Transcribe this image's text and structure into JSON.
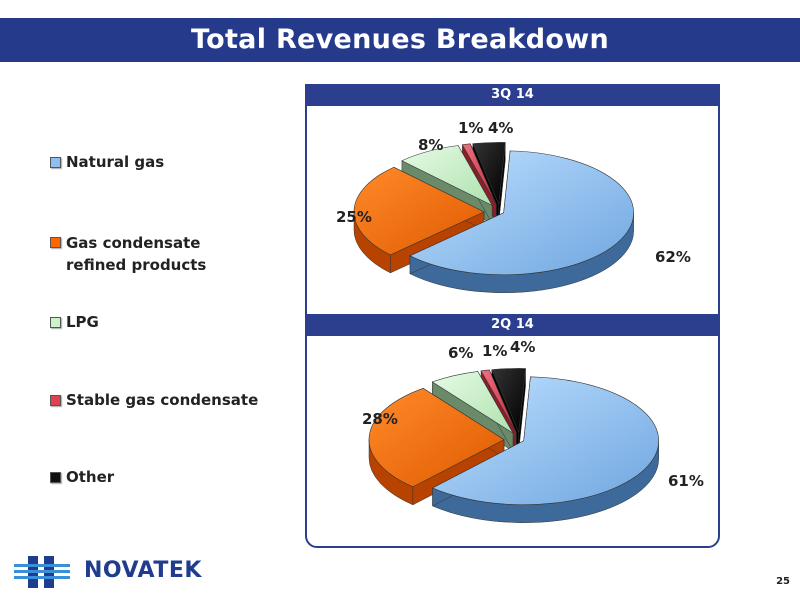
{
  "header": {
    "title": "Total Revenues Breakdown"
  },
  "legend": [
    {
      "label": "Natural gas",
      "color": "#8fbff0"
    },
    {
      "label": "Gas condensate\nrefined products",
      "color": "#ff6600"
    },
    {
      "label": "LPG",
      "color": "#ccf2cc"
    },
    {
      "label": "Stable gas condensate",
      "color": "#e04050"
    },
    {
      "label": "Other",
      "color": "#111111"
    }
  ],
  "chart_data": [
    {
      "type": "pie",
      "title": "3Q 14",
      "categories": [
        "Natural gas",
        "Gas condensate refined products",
        "LPG",
        "Stable gas condensate",
        "Other"
      ],
      "values": [
        62,
        25,
        8,
        1,
        4
      ],
      "labels": [
        "62%",
        "25%",
        "8%",
        "1%",
        "4%"
      ],
      "exploded": true
    },
    {
      "type": "pie",
      "title": "2Q 14",
      "categories": [
        "Natural gas",
        "Gas condensate refined products",
        "LPG",
        "Stable gas condensate",
        "Other"
      ],
      "values": [
        61,
        28,
        6,
        1,
        4
      ],
      "labels": [
        "61%",
        "28%",
        "6%",
        "1%",
        "4%"
      ],
      "exploded": true
    }
  ],
  "footer": {
    "logo_text": "NOVATEK",
    "page_number": "25"
  }
}
